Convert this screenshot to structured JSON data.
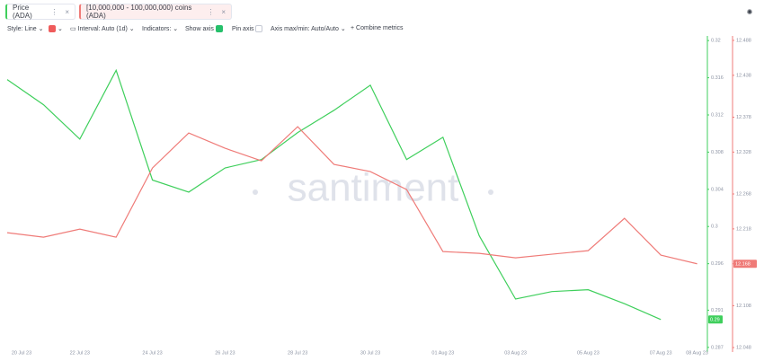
{
  "toolbar": {
    "style": "Style: Line",
    "interval": "Interval: Auto (1d)",
    "indicators": "Indicators:",
    "show_axis": "Show axis",
    "pin_axis": "Pin axis",
    "axis_minmax": "Axis max/min: Auto/Auto",
    "combine": "Combine metrics"
  },
  "chart_data": {
    "type": "line",
    "watermark": "santiment",
    "categories": [
      "20 Jul 23",
      null,
      "22 Jul 23",
      null,
      "24 Jul 23",
      null,
      "26 Jul 23",
      null,
      "28 Jul 23",
      null,
      "30 Jul 23",
      null,
      "01 Aug 23",
      null,
      "03 Aug 23",
      null,
      "05 Aug 23",
      null,
      "07 Aug 23",
      "08 Aug 23"
    ],
    "series": [
      {
        "name": "Price (ADA)",
        "color": "#3fcf5c",
        "values": [
          0.3158,
          0.3131,
          0.3094,
          0.3168,
          0.305,
          0.3037,
          0.3063,
          0.3072,
          0.3101,
          0.3125,
          0.3152,
          0.3072,
          0.3096,
          0.299,
          0.2922,
          0.293,
          0.2932,
          0.2917,
          0.29,
          null
        ]
      },
      {
        "name": "[10,000,000 - 100,000,000) coins (ADA)",
        "color": "#ef7b78",
        "axis": "y2",
        "values": [
          12.2125,
          12.2061,
          12.2177,
          12.2061,
          12.3052,
          12.3554,
          12.3335,
          12.3155,
          12.3644,
          12.3104,
          12.3001,
          12.2743,
          12.1855,
          12.1829,
          12.1765,
          12.1817,
          12.1868,
          12.2331,
          12.1804,
          12.168
        ]
      }
    ],
    "ylim": [
      0.2865,
      0.3205
    ],
    "yticks": [
      0.32,
      0.316,
      0.312,
      0.308,
      0.304,
      0.3,
      0.296,
      0.291,
      0.287
    ],
    "y2lim": [
      12.0416,
      12.4944
    ],
    "y2ticks": [
      12.488,
      12.438,
      12.378,
      12.328,
      12.268,
      12.218,
      12.168,
      12.108,
      12.048
    ]
  }
}
